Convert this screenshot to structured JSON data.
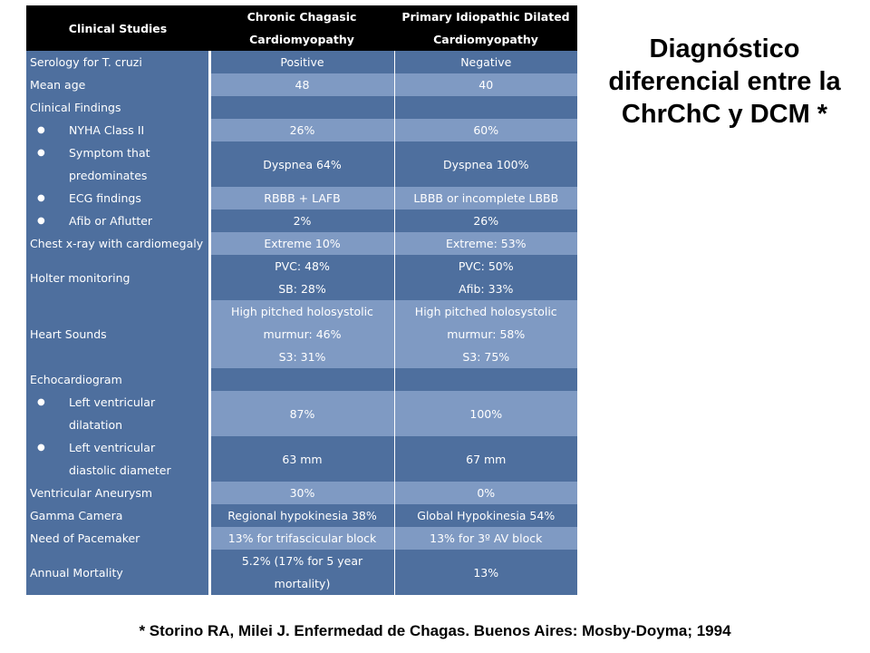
{
  "title": "Diagnóstico diferencial entre la ChrChC y DCM *",
  "citation": "* Storino RA, Milei J. Enfermedad de Chagas. Buenos Aires: Mosby-Doyma; 1994",
  "colors": {
    "header_bg": "#000000",
    "dark_row": "#4e6f9e",
    "light_row": "#7f9ac3",
    "text": "#ffffff"
  },
  "table": {
    "headers": [
      "Clinical Studies",
      "Chronic Chagasic Cardiomyopathy",
      "Primary Idiopathic Dilated Cardiomyopathy"
    ],
    "rows": [
      {
        "label": "Serology for T. cruzi",
        "bullet": false,
        "shade": "dark",
        "c1": [
          "Positive"
        ],
        "c2": [
          "Negative"
        ]
      },
      {
        "label": "Mean age",
        "bullet": false,
        "shade": "light",
        "c1": [
          "48"
        ],
        "c2": [
          "40"
        ]
      },
      {
        "label": "Clinical Findings",
        "bullet": false,
        "shade": "dark",
        "c1": [],
        "c2": []
      },
      {
        "label": "NYHA Class II",
        "bullet": true,
        "shade": "light",
        "c1": [
          "26%"
        ],
        "c2": [
          "60%"
        ]
      },
      {
        "label": "Symptom that predominates",
        "bullet": true,
        "shade": "dark",
        "c1": [
          "Dyspnea 64%"
        ],
        "c2": [
          "Dyspnea 100%"
        ]
      },
      {
        "label": "ECG findings",
        "bullet": true,
        "shade": "light",
        "c1": [
          "RBBB + LAFB"
        ],
        "c2": [
          "LBBB or incomplete LBBB"
        ]
      },
      {
        "label": "Afib or Aflutter",
        "bullet": true,
        "shade": "dark",
        "c1": [
          "2%"
        ],
        "c2": [
          "26%"
        ]
      },
      {
        "label": "Chest x-ray with cardiomegaly",
        "bullet": false,
        "shade": "light",
        "c1": [
          "Extreme 10%"
        ],
        "c2": [
          "Extreme: 53%"
        ]
      },
      {
        "label": "Holter monitoring",
        "bullet": false,
        "shade": "dark",
        "c1": [
          "PVC: 48%",
          "SB: 28%"
        ],
        "c2": [
          "PVC: 50%",
          "Afib: 33%"
        ]
      },
      {
        "label": "Heart Sounds",
        "bullet": false,
        "shade": "light",
        "c1": [
          "High pitched holosystolic murmur: 46%",
          "S3: 31%"
        ],
        "c2": [
          "High pitched holosystolic murmur: 58%",
          "S3: 75%"
        ]
      },
      {
        "label": "Echocardiogram",
        "bullet": false,
        "shade": "dark",
        "c1": [],
        "c2": []
      },
      {
        "label": "Left ventricular dilatation",
        "bullet": true,
        "shade": "light",
        "c1": [
          "87%"
        ],
        "c2": [
          "100%"
        ]
      },
      {
        "label": "Left ventricular diastolic diameter",
        "bullet": true,
        "shade": "dark",
        "c1": [
          "63 mm"
        ],
        "c2": [
          "67 mm"
        ]
      },
      {
        "label": "Ventricular Aneurysm",
        "bullet": false,
        "shade": "light",
        "c1": [
          "30%"
        ],
        "c2": [
          "0%"
        ]
      },
      {
        "label": "Gamma Camera",
        "bullet": false,
        "shade": "dark",
        "c1": [
          "Regional hypokinesia 38%"
        ],
        "c2": [
          "Global Hypokinesia 54%"
        ]
      },
      {
        "label": "Need of Pacemaker",
        "bullet": false,
        "shade": "light",
        "c1": [
          "13% for trifascicular block"
        ],
        "c2": [
          "13% for 3º AV block"
        ]
      },
      {
        "label": "Annual Mortality",
        "bullet": false,
        "shade": "dark",
        "c1": [
          "5.2% (17% for 5 year mortality)"
        ],
        "c2": [
          "13%"
        ]
      }
    ]
  }
}
